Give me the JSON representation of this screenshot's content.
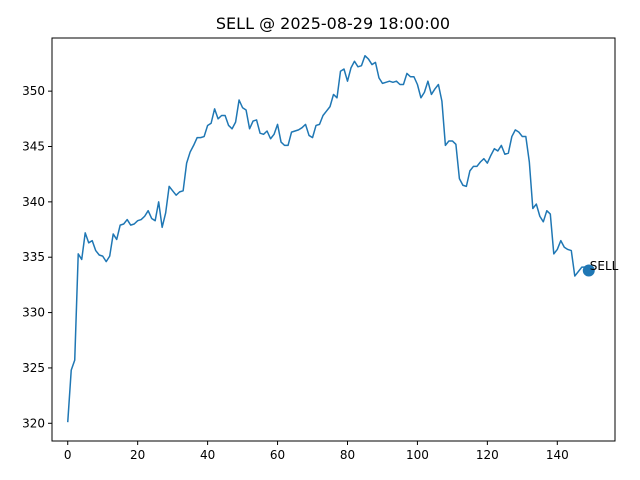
{
  "chart_data": {
    "type": "line",
    "title": "SELL @ 2025-08-29 18:00:00",
    "xlabel": "",
    "ylabel": "",
    "xlim": [
      -4.5,
      156.5
    ],
    "ylim": [
      318.4,
      354.8
    ],
    "xticks": [
      0,
      20,
      40,
      60,
      80,
      100,
      120,
      140
    ],
    "yticks": [
      320,
      325,
      330,
      335,
      340,
      345,
      350
    ],
    "grid": false,
    "line_color": "#1f77b4",
    "series": [
      {
        "values": [
          320.1,
          324.8,
          325.7,
          335.3,
          334.8,
          337.2,
          336.3,
          336.5,
          335.6,
          335.2,
          335.1,
          334.6,
          335.1,
          337.1,
          336.6,
          337.9,
          338.0,
          338.4,
          337.9,
          338.0,
          338.3,
          338.4,
          338.7,
          339.2,
          338.5,
          338.3,
          340.0,
          337.7,
          339.0,
          341.4,
          341.0,
          340.6,
          340.9,
          341.0,
          343.5,
          344.5,
          345.1,
          345.8,
          345.8,
          345.9,
          346.9,
          347.1,
          348.4,
          347.5,
          347.8,
          347.8,
          346.9,
          346.6,
          347.2,
          349.2,
          348.5,
          348.3,
          346.6,
          347.3,
          347.4,
          346.2,
          346.1,
          346.4,
          345.7,
          346.1,
          347.0,
          345.4,
          345.1,
          345.1,
          346.3,
          346.4,
          346.5,
          346.7,
          347.0,
          346.0,
          345.8,
          346.9,
          347.0,
          347.8,
          348.2,
          348.6,
          349.7,
          349.4,
          351.8,
          352.0,
          350.9,
          352.1,
          352.7,
          352.2,
          352.3,
          353.2,
          352.9,
          352.4,
          352.6,
          351.2,
          350.7,
          350.8,
          350.9,
          350.8,
          350.9,
          350.6,
          350.6,
          351.6,
          351.3,
          351.3,
          350.6,
          349.4,
          349.9,
          350.9,
          349.7,
          350.2,
          350.6,
          349.1,
          345.1,
          345.5,
          345.5,
          345.2,
          342.1,
          341.5,
          341.4,
          342.8,
          343.2,
          343.2,
          343.6,
          343.9,
          343.5,
          344.2,
          344.8,
          344.6,
          345.1,
          344.3,
          344.4,
          345.9,
          346.5,
          346.3,
          345.9,
          345.9,
          343.6,
          339.4,
          339.8,
          338.7,
          338.2,
          339.2,
          338.9,
          335.3,
          335.7,
          336.5,
          335.9,
          335.7,
          335.6,
          333.3,
          333.7,
          334.1,
          334.1,
          333.8
        ]
      }
    ],
    "annotations": [
      {
        "text": "SELL",
        "x": 149,
        "y": 333.8,
        "marker_color": "#1f77b4"
      }
    ]
  }
}
